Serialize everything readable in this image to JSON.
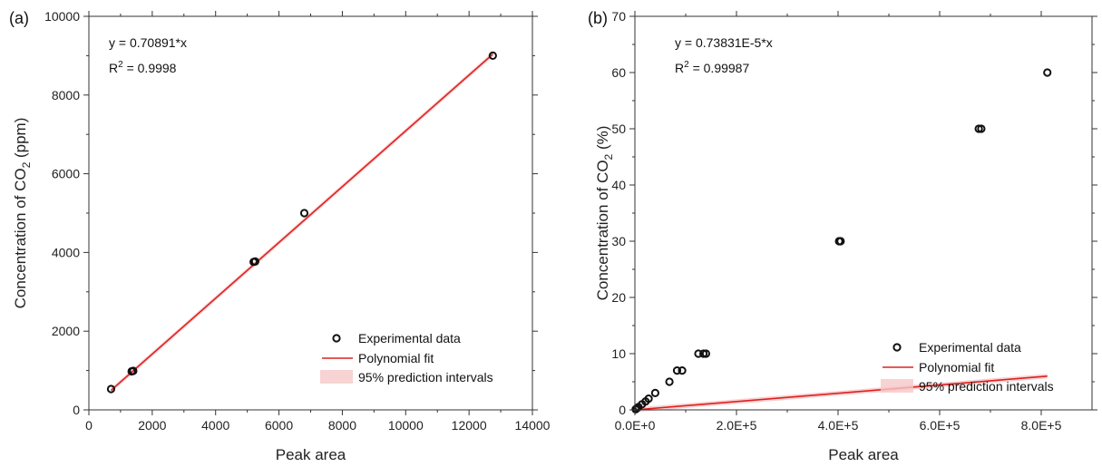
{
  "chart_data": [
    {
      "type": "scatter",
      "panel_label": "(a)",
      "xlabel": "Peak area",
      "ylabel_main": "Concentration of CO",
      "ylabel_sub": "2",
      "ylabel_tail": " (ppm)",
      "xlim": [
        0,
        14000
      ],
      "ylim": [
        0,
        10000
      ],
      "xticks": [
        0,
        2000,
        4000,
        6000,
        8000,
        10000,
        12000,
        14000
      ],
      "xtick_labels": [
        "0",
        "2000",
        "4000",
        "6000",
        "8000",
        "10000",
        "12000",
        "14000"
      ],
      "yticks": [
        0,
        2000,
        4000,
        6000,
        8000,
        10000
      ],
      "ytick_labels": [
        "0",
        "2000",
        "4000",
        "6000",
        "8000",
        "10000"
      ],
      "equation": "y =  0.70891*x",
      "r2_prefix": "R",
      "r2_sup": "2",
      "r2_value": " = 0.9998",
      "fit_slope": 0.70891,
      "fit_x_range": [
        700,
        12750
      ],
      "points": [
        {
          "x": 700,
          "y": 530
        },
        {
          "x": 1350,
          "y": 980
        },
        {
          "x": 1400,
          "y": 990
        },
        {
          "x": 5200,
          "y": 3760
        },
        {
          "x": 5250,
          "y": 3770
        },
        {
          "x": 6800,
          "y": 5000
        },
        {
          "x": 12750,
          "y": 9000
        }
      ],
      "legend": {
        "position": "bottom-right",
        "entries": [
          "Experimental data",
          "Polynomial fit",
          "95% prediction intervals"
        ]
      },
      "grid": false
    },
    {
      "type": "scatter",
      "panel_label": "(b)",
      "xlabel": "Peak area",
      "ylabel_main": "Concentration of CO",
      "ylabel_sub": "2",
      "ylabel_tail": " (%)",
      "xlim": [
        0,
        900000
      ],
      "ylim": [
        0,
        70
      ],
      "xticks": [
        0,
        200000,
        400000,
        600000,
        800000
      ],
      "xtick_labels": [
        "0.0E+0",
        "2.0E+5",
        "4.0E+5",
        "6.0E+5",
        "8.0E+5"
      ],
      "yticks": [
        0,
        10,
        20,
        30,
        40,
        50,
        60,
        70
      ],
      "ytick_labels": [
        "0",
        "10",
        "20",
        "30",
        "40",
        "50",
        "60",
        "70"
      ],
      "equation": "y =  0.73831E-5*x",
      "r2_prefix": "R",
      "r2_sup": "2",
      "r2_value": " = 0.99987",
      "fit_slope": 7.3831e-06,
      "fit_x_range": [
        0,
        812000
      ],
      "points": [
        {
          "x": 1500,
          "y": 0.1
        },
        {
          "x": 4000,
          "y": 0.3
        },
        {
          "x": 7000,
          "y": 0.5
        },
        {
          "x": 14000,
          "y": 1.0
        },
        {
          "x": 21000,
          "y": 1.5
        },
        {
          "x": 27000,
          "y": 2.0
        },
        {
          "x": 40000,
          "y": 3.0
        },
        {
          "x": 68000,
          "y": 5.0
        },
        {
          "x": 83000,
          "y": 7.0
        },
        {
          "x": 93000,
          "y": 7.0
        },
        {
          "x": 125000,
          "y": 10.0
        },
        {
          "x": 135000,
          "y": 10.0
        },
        {
          "x": 140000,
          "y": 10.0
        },
        {
          "x": 402000,
          "y": 30.0
        },
        {
          "x": 405000,
          "y": 30.0
        },
        {
          "x": 677000,
          "y": 50.0
        },
        {
          "x": 682000,
          "y": 50.0
        },
        {
          "x": 812000,
          "y": 60.0
        }
      ],
      "legend": {
        "position": "bottom-right",
        "entries": [
          "Experimental data",
          "Polynomial fit",
          "95% prediction intervals"
        ]
      },
      "grid": false
    }
  ],
  "colors": {
    "fit_line": "#e02020",
    "prediction_band": "#f6c8c8",
    "marker_edge": "#111111",
    "axis": "#333333"
  }
}
